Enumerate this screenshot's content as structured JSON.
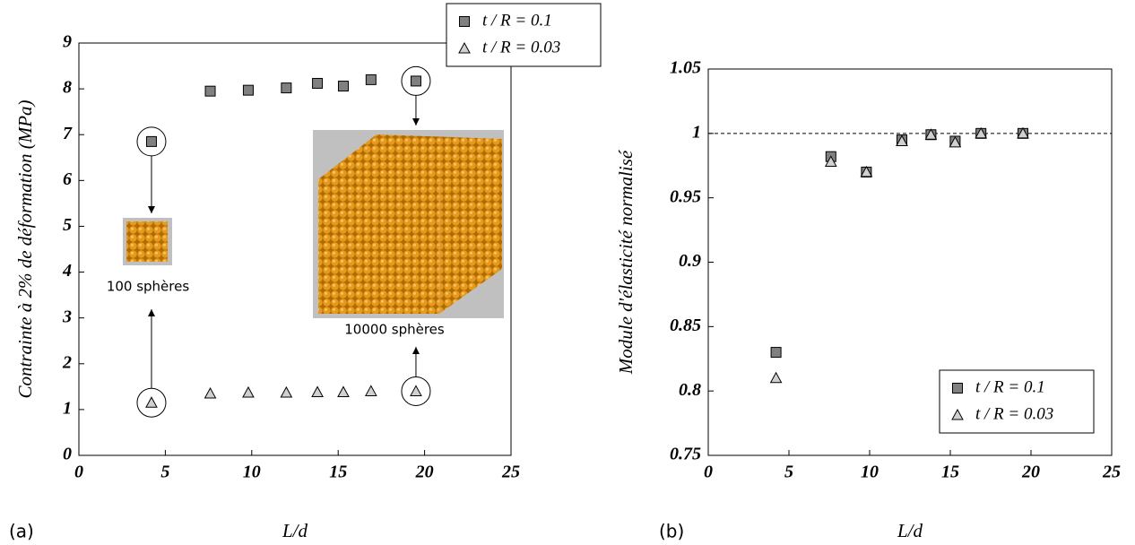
{
  "chart_data": [
    {
      "type": "scatter",
      "panel_label": "(a)",
      "xlabel": "L/d",
      "ylabel": "Contrainte à 2% de déformation (MPa)",
      "xlim": [
        0,
        25
      ],
      "ylim": [
        0,
        9
      ],
      "xticks": [
        0,
        5,
        10,
        15,
        20,
        25
      ],
      "yticks": [
        0,
        1,
        2,
        3,
        4,
        5,
        6,
        7,
        8,
        9
      ],
      "legend": "top right outside",
      "annotations": [
        "100 sphères",
        "10000 sphères"
      ],
      "series": [
        {
          "name": "t / R = 0.1",
          "color": "#808080",
          "marker": "square",
          "x": [
            4.2,
            7.6,
            9.8,
            12,
            13.8,
            15.3,
            16.9,
            19.5
          ],
          "values": [
            6.85,
            7.95,
            7.97,
            8.02,
            8.12,
            8.06,
            8.2,
            8.17
          ]
        },
        {
          "name": "t / R = 0.03",
          "color": "#d0d0d0",
          "marker": "triangle",
          "x": [
            4.2,
            7.6,
            9.8,
            12,
            13.8,
            15.3,
            16.9,
            19.5
          ],
          "values": [
            1.15,
            1.35,
            1.37,
            1.37,
            1.38,
            1.38,
            1.4,
            1.4
          ]
        }
      ]
    },
    {
      "type": "scatter",
      "panel_label": "(b)",
      "xlabel": "L/d",
      "ylabel": "Module d'élasticité normalisé",
      "xlim": [
        0,
        25
      ],
      "ylim": [
        0.75,
        1.05
      ],
      "xticks": [
        0,
        5,
        10,
        15,
        20,
        25
      ],
      "yticks": [
        0.75,
        0.8,
        0.85,
        0.9,
        0.95,
        1,
        1.05
      ],
      "reference_line": 1,
      "legend": "lower right",
      "series": [
        {
          "name": "t / R = 0.1",
          "color": "#808080",
          "marker": "square",
          "x": [
            4.2,
            7.6,
            9.8,
            12,
            13.8,
            15.3,
            16.9,
            19.5
          ],
          "values": [
            0.83,
            0.982,
            0.97,
            0.995,
            0.999,
            0.994,
            1.0,
            1.0
          ]
        },
        {
          "name": "t / R = 0.03",
          "color": "#d0d0d0",
          "marker": "triangle",
          "x": [
            4.2,
            7.6,
            9.8,
            12,
            13.8,
            15.3,
            16.9,
            19.5
          ],
          "values": [
            0.81,
            0.978,
            0.97,
            0.994,
            0.999,
            0.993,
            1.0,
            1.0
          ]
        }
      ]
    }
  ]
}
